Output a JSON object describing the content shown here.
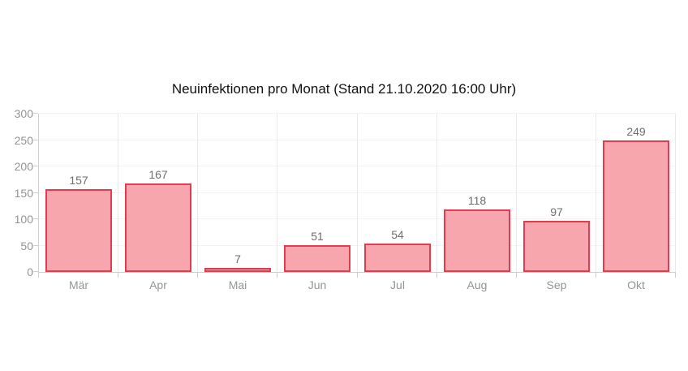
{
  "chart_data": {
    "type": "bar",
    "title": "Neuinfektionen pro Monat (Stand 21.10.2020 16:00 Uhr)",
    "categories": [
      "Mär",
      "Apr",
      "Mai",
      "Jun",
      "Jul",
      "Aug",
      "Sep",
      "Okt"
    ],
    "values": [
      157,
      167,
      7,
      51,
      54,
      118,
      97,
      249
    ],
    "xlabel": "",
    "ylabel": "",
    "ylim": [
      0,
      300
    ],
    "yticks": [
      0,
      50,
      100,
      150,
      200,
      250,
      300
    ],
    "grid": true,
    "legend": false,
    "value_labels_shown": true,
    "colors": {
      "bar_fill": "#f7a6ae",
      "bar_border": "#e23c4f",
      "grid_horizontal": "#f3f3f3",
      "grid_vertical": "#e9e9e9",
      "axis": "#cfcfcf",
      "tick_label": "#949494",
      "value_label": "#6e6e6e",
      "title": "#111111",
      "background": "#ffffff"
    }
  }
}
